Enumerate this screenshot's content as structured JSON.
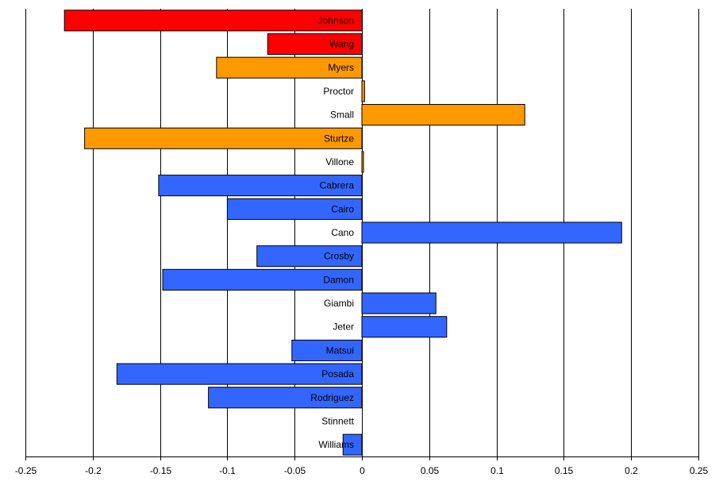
{
  "chart_data": {
    "type": "bar",
    "orientation": "horizontal",
    "title": "",
    "xlabel": "",
    "ylabel": "",
    "xlim": [
      -0.25,
      0.25
    ],
    "x_ticks": [
      -0.25,
      -0.2,
      -0.15,
      -0.1,
      -0.05,
      0,
      0.05,
      0.1,
      0.15,
      0.2,
      0.25
    ],
    "x_tick_labels": [
      "-0.25",
      "-0.2",
      "-0.15",
      "-0.1",
      "-0.05",
      "0",
      "0.05",
      "0.1",
      "0.15",
      "0.2",
      "0.25"
    ],
    "grid": "vertical",
    "legend": "none",
    "groups": [
      {
        "color": "#FF0000",
        "categories": [
          "Johnson",
          "Wang"
        ]
      },
      {
        "color": "#FF9900",
        "categories": [
          "Myers",
          "Proctor",
          "Small",
          "Sturtze",
          "Villone"
        ]
      },
      {
        "color": "#3366FF",
        "categories": [
          "Cabrera",
          "Cairo",
          "Cano",
          "Crosby",
          "Damon",
          "Giambi",
          "Jeter",
          "Matsui",
          "Posada",
          "Rodriguez",
          "Stinnett",
          "Williams"
        ]
      }
    ],
    "categories": [
      "Johnson",
      "Wang",
      "Myers",
      "Proctor",
      "Small",
      "Sturtze",
      "Villone",
      "Cabrera",
      "Cairo",
      "Cano",
      "Crosby",
      "Damon",
      "Giambi",
      "Jeter",
      "Matsui",
      "Posada",
      "Rodriguez",
      "Stinnett",
      "Williams"
    ],
    "values": [
      -0.221,
      -0.07,
      -0.108,
      0.002,
      0.121,
      -0.206,
      0.001,
      -0.151,
      -0.1,
      0.193,
      -0.078,
      -0.148,
      0.055,
      0.063,
      -0.052,
      -0.182,
      -0.114,
      0,
      -0.014
    ],
    "colors": [
      "#FF0000",
      "#FF0000",
      "#FF9900",
      "#FF9900",
      "#FF9900",
      "#FF9900",
      "#FF9900",
      "#3366FF",
      "#3366FF",
      "#3366FF",
      "#3366FF",
      "#3366FF",
      "#3366FF",
      "#3366FF",
      "#3366FF",
      "#3366FF",
      "#3366FF",
      "#3366FF",
      "#3366FF"
    ]
  }
}
